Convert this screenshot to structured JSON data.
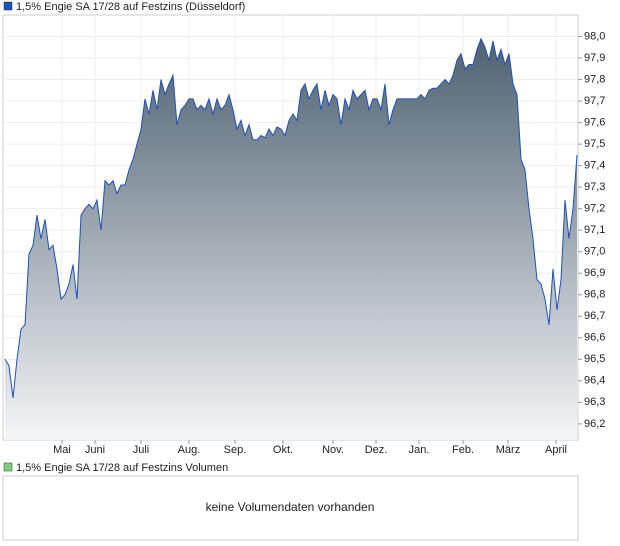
{
  "chart_data": {
    "type": "area",
    "series": [
      {
        "name": "1,5% Engie SA 17/28 auf Festzins (Düsseldorf)",
        "color": "#2050b8",
        "values": [
          96.5,
          96.47,
          96.32,
          96.5,
          96.64,
          96.66,
          96.99,
          97.03,
          97.17,
          97.06,
          97.15,
          97.01,
          97.03,
          96.92,
          96.78,
          96.8,
          96.85,
          96.94,
          96.78,
          97.17,
          97.2,
          97.22,
          97.2,
          97.24,
          97.1,
          97.33,
          97.31,
          97.33,
          97.27,
          97.31,
          97.31,
          97.38,
          97.43,
          97.5,
          97.57,
          97.71,
          97.64,
          97.75,
          97.66,
          97.8,
          97.73,
          97.78,
          97.82,
          97.59,
          97.66,
          97.68,
          97.71,
          97.71,
          97.66,
          97.68,
          97.66,
          97.71,
          97.64,
          97.71,
          97.66,
          97.68,
          97.73,
          97.66,
          97.57,
          97.61,
          97.54,
          97.59,
          97.52,
          97.52,
          97.54,
          97.53,
          97.57,
          97.54,
          97.58,
          97.57,
          97.54,
          97.61,
          97.64,
          97.61,
          97.75,
          97.78,
          97.71,
          97.75,
          97.78,
          97.66,
          97.75,
          97.68,
          97.73,
          97.71,
          97.59,
          97.71,
          97.66,
          97.75,
          97.71,
          97.73,
          97.75,
          97.66,
          97.71,
          97.71,
          97.66,
          97.78,
          97.59,
          97.66,
          97.71,
          97.71,
          97.71,
          97.71,
          97.71,
          97.71,
          97.73,
          97.71,
          97.75,
          97.76,
          97.76,
          97.78,
          97.8,
          97.78,
          97.82,
          97.89,
          97.92,
          97.85,
          97.87,
          97.87,
          97.94,
          97.99,
          97.95,
          97.89,
          97.98,
          97.89,
          97.94,
          97.87,
          97.92,
          97.78,
          97.73,
          97.43,
          97.38,
          97.2,
          97.06,
          96.87,
          96.85,
          96.78,
          96.66,
          96.92,
          96.73,
          96.87,
          97.24,
          97.06,
          97.2,
          97.45
        ]
      }
    ],
    "xlim": [
      0,
      143
    ],
    "xticks": [
      {
        "value": 14.25,
        "label": "Mai"
      },
      {
        "value": 22.5,
        "label": "Juni"
      },
      {
        "value": 34,
        "label": "Juli"
      },
      {
        "value": 46,
        "label": "Aug."
      },
      {
        "value": 57.5,
        "label": "Sep."
      },
      {
        "value": 69.5,
        "label": "Okt."
      },
      {
        "value": 82,
        "label": "Nov."
      },
      {
        "value": 92.75,
        "label": "Dez."
      },
      {
        "value": 103.5,
        "label": "Jan."
      },
      {
        "value": 114.5,
        "label": "Feb."
      },
      {
        "value": 125.75,
        "label": "März"
      },
      {
        "value": 137.75,
        "label": "April"
      }
    ],
    "ylim": [
      96.125,
      98.1
    ],
    "yticks": [
      {
        "value": 96.2,
        "label": "96,2"
      },
      {
        "value": 96.3,
        "label": "96,3"
      },
      {
        "value": 96.4,
        "label": "96,4"
      },
      {
        "value": 96.5,
        "label": "96,5"
      },
      {
        "value": 96.6,
        "label": "96,6"
      },
      {
        "value": 96.7,
        "label": "96,7"
      },
      {
        "value": 96.8,
        "label": "96,8"
      },
      {
        "value": 96.9,
        "label": "96,9"
      },
      {
        "value": 97.0,
        "label": "97,0"
      },
      {
        "value": 97.1,
        "label": "97,1"
      },
      {
        "value": 97.2,
        "label": "97,2"
      },
      {
        "value": 97.3,
        "label": "97,3"
      },
      {
        "value": 97.4,
        "label": "97,4"
      },
      {
        "value": 97.5,
        "label": "97,5"
      },
      {
        "value": 97.6,
        "label": "97,6"
      },
      {
        "value": 97.7,
        "label": "97,7"
      },
      {
        "value": 97.8,
        "label": "97,8"
      },
      {
        "value": 97.9,
        "label": "97,9"
      },
      {
        "value": 98.0,
        "label": "98,0"
      }
    ],
    "grid": true
  },
  "volume_panel": {
    "legend": "1,5% Engie SA 17/28 auf Festzins Volumen",
    "color": "#7fcf7f",
    "message": "keine Volumendaten vorhanden"
  }
}
